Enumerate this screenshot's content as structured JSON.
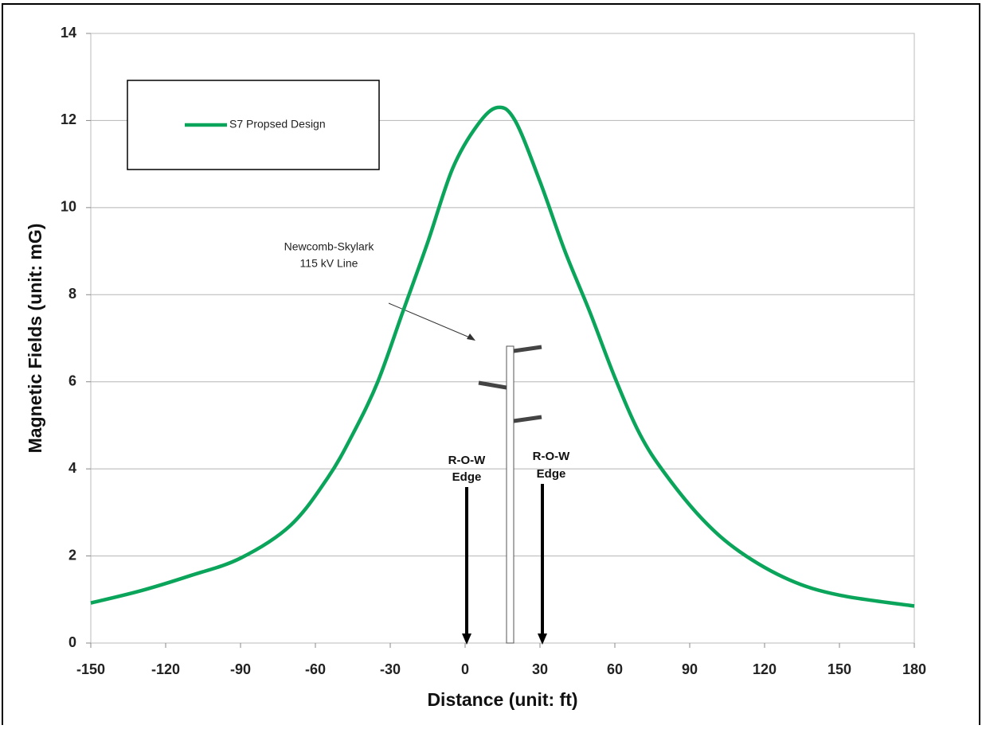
{
  "chart_data": {
    "type": "line",
    "xlabel": "Distance (unit: ft)",
    "ylabel": "Magnetic Fields (unit: mG)",
    "x": [
      -150,
      -130,
      -110,
      -90,
      -70,
      -55,
      -45,
      -35,
      -25,
      -15,
      -5,
      5,
      13,
      20,
      30,
      40,
      50,
      60,
      70,
      80,
      95,
      110,
      130,
      150,
      180
    ],
    "series": [
      {
        "name": "S7 Propsed Design",
        "color": "#0aa55a",
        "values": [
          0.92,
          1.2,
          1.55,
          1.95,
          2.7,
          3.8,
          4.8,
          6.0,
          7.6,
          9.2,
          10.9,
          11.9,
          12.3,
          12.0,
          10.6,
          9.0,
          7.6,
          6.1,
          4.8,
          3.9,
          2.85,
          2.1,
          1.45,
          1.1,
          0.85
        ]
      }
    ],
    "xlim": [
      -150,
      180
    ],
    "ylim": [
      0,
      14
    ],
    "xticks": [
      -150,
      -120,
      -90,
      -60,
      -30,
      0,
      30,
      60,
      90,
      120,
      150,
      180
    ],
    "yticks": [
      0,
      2,
      4,
      6,
      8,
      10,
      12,
      14
    ],
    "grid": true,
    "annotations": [
      "Newcomb-Skylark",
      "115 kV Line",
      "R-O-W",
      "Edge",
      "R-O-W",
      "Edge"
    ]
  }
}
